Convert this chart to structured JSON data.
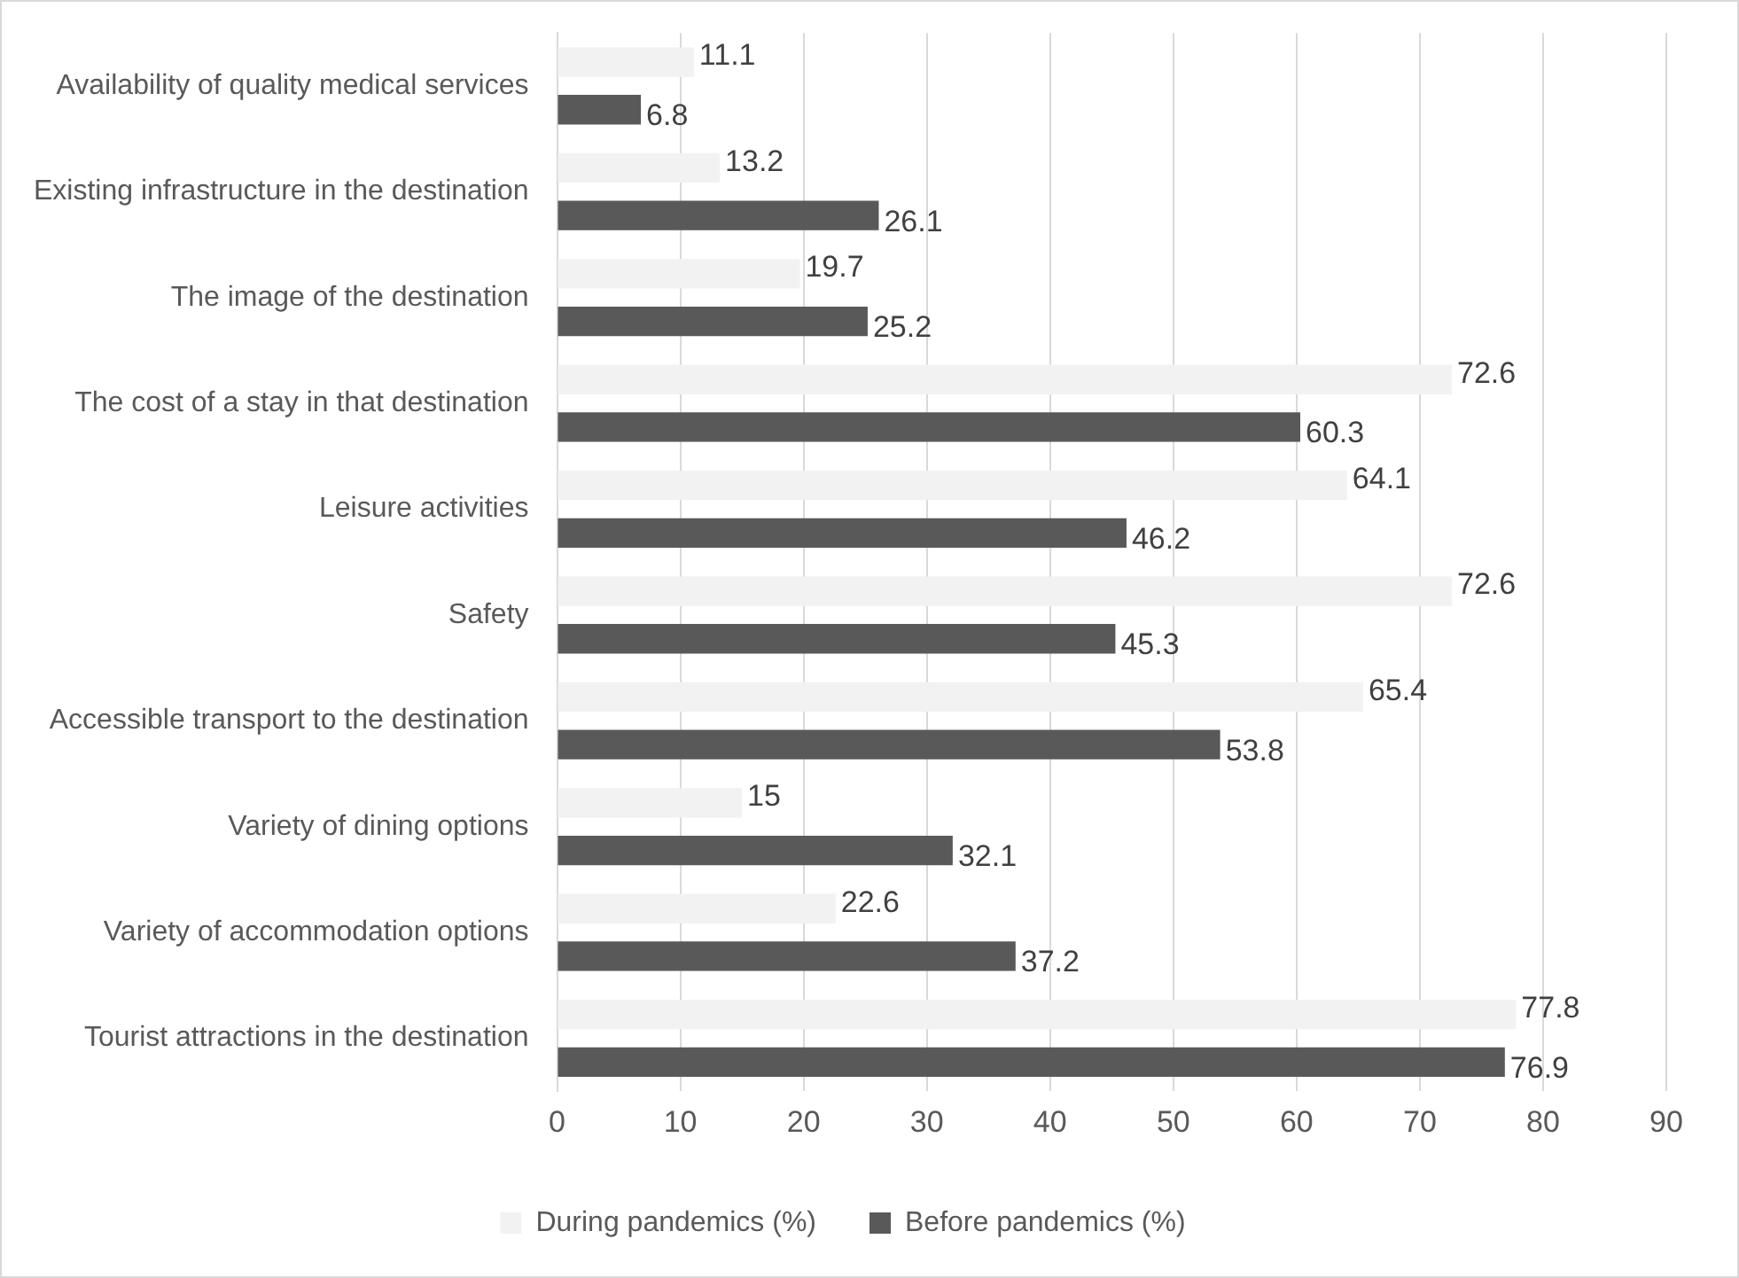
{
  "chart_data": {
    "type": "bar",
    "orientation": "horizontal",
    "categories": [
      "Availability of quality medical services",
      "Existing infrastructure in the destination",
      "The image of the destination",
      "The cost of a stay in that destination",
      "Leisure activities",
      "Safety",
      "Accessible transport to the destination",
      "Variety of dining options",
      "Variety of accommodation options",
      "Tourist attractions in the destination"
    ],
    "series": [
      {
        "name": "During pandemics (%)",
        "color": "#f2f2f2",
        "values": [
          11.1,
          13.2,
          19.7,
          72.6,
          64.1,
          72.6,
          65.4,
          15,
          22.6,
          77.8
        ]
      },
      {
        "name": "Before pandemics (%)",
        "color": "#595959",
        "values": [
          6.8,
          26.1,
          25.2,
          60.3,
          46.2,
          45.3,
          53.8,
          32.1,
          37.2,
          76.9
        ]
      }
    ],
    "xlim": [
      0,
      90
    ],
    "xticks": [
      0,
      10,
      20,
      30,
      40,
      50,
      60,
      70,
      80,
      90
    ],
    "grid": "x",
    "legend": "bottom",
    "data_labels": true
  }
}
